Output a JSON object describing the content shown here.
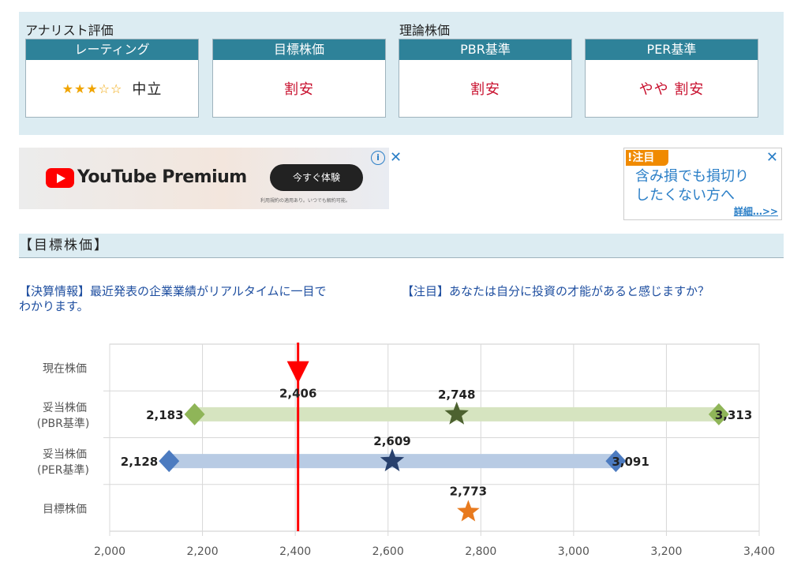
{
  "rating_panel": {
    "analyst_label": "アナリスト評価",
    "theory_label": "理論株価",
    "cards": [
      {
        "header": "レーティング",
        "stars": "★★★☆☆",
        "value": "中立"
      },
      {
        "header": "目標株価",
        "value": "割安"
      },
      {
        "header": "PBR基準",
        "value": "割安"
      },
      {
        "header": "PER基準",
        "value": "やや 割安"
      }
    ]
  },
  "ads": {
    "youtube": {
      "brand": "YouTube Premium",
      "cta": "今すぐ体験",
      "note": "利用規約の適用あり。いつでも解約可能。",
      "info": "i",
      "close": "✕"
    },
    "small": {
      "badge": "!注目",
      "line1": "含み損でも損切り",
      "line2": "したくない方へ",
      "link": "詳細…>>",
      "close": "✕"
    }
  },
  "section": {
    "title": "【目標株価】"
  },
  "promos": {
    "left_line1": "【決算情報】最近発表の企業業績がリアルタイムに一目で",
    "left_line2": "わかります。",
    "right": "【注目】あなたは自分に投資の才能があると感じますか？"
  },
  "colors": {
    "current": "#ff0000",
    "pbr_bar": "#d6e4c0",
    "pbr_marker": "#8fb558",
    "pbr_star": "#4d6230",
    "per_bar": "#b8cbe4",
    "per_marker": "#4c7bc0",
    "per_star": "#27406d",
    "target_star": "#e87a1e"
  },
  "chart_data": {
    "type": "range",
    "xlim": [
      2000,
      3400
    ],
    "xticks": [
      2000,
      2200,
      2400,
      2600,
      2800,
      3000,
      3200,
      3400
    ],
    "xtick_labels": [
      "2,000",
      "2,200",
      "2,400",
      "2,600",
      "2,800",
      "3,000",
      "3,200",
      "3,400"
    ],
    "grid": true,
    "rows": [
      {
        "label": "現在株価",
        "value": 2406,
        "value_label": "2,406"
      },
      {
        "label": "妥当株価",
        "sublabel": "(PBR基準)",
        "low": 2183,
        "mid": 2748,
        "high": 3313,
        "low_label": "2,183",
        "mid_label": "2,748",
        "high_label": "3,313"
      },
      {
        "label": "妥当株価",
        "sublabel": "(PER基準)",
        "low": 2128,
        "mid": 2609,
        "high": 3091,
        "low_label": "2,128",
        "mid_label": "2,609",
        "high_label": "3,091"
      },
      {
        "label": "目標株価",
        "value": 2773,
        "value_label": "2,773"
      }
    ]
  }
}
